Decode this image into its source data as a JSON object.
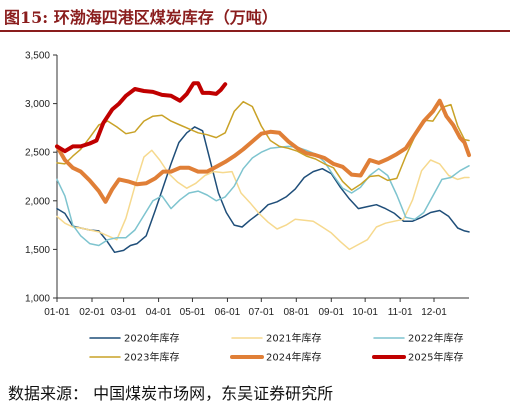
{
  "figure": {
    "label": "图15:",
    "title": "环渤海四港区煤炭库存（万吨）"
  },
  "source": {
    "prefix": "数据来源：",
    "text": "中国煤炭市场网，东吴证券研究所"
  },
  "chart_data": {
    "type": "line",
    "title": "",
    "xlabel": "",
    "ylabel": "",
    "ylim": [
      1000,
      3500
    ],
    "yticks": [
      "1,000",
      "1,500",
      "2,000",
      "2,500",
      "3,000",
      "3,500"
    ],
    "xticks": [
      "01-01",
      "02-01",
      "03-01",
      "04-01",
      "05-01",
      "06-01",
      "07-01",
      "08-01",
      "09-01",
      "10-01",
      "11-01",
      "12-01"
    ],
    "x_unit": "day_of_year",
    "grid": false,
    "legend": "bottom",
    "series": [
      {
        "name": "2020年库存",
        "color": "#1f4e79",
        "width": 1.5,
        "points": [
          [
            1,
            1920
          ],
          [
            8,
            1870
          ],
          [
            15,
            1740
          ],
          [
            22,
            1720
          ],
          [
            30,
            1700
          ],
          [
            38,
            1690
          ],
          [
            45,
            1590
          ],
          [
            52,
            1470
          ],
          [
            60,
            1490
          ],
          [
            66,
            1540
          ],
          [
            72,
            1560
          ],
          [
            80,
            1640
          ],
          [
            88,
            1900
          ],
          [
            95,
            2140
          ],
          [
            102,
            2380
          ],
          [
            109,
            2600
          ],
          [
            116,
            2700
          ],
          [
            123,
            2760
          ],
          [
            130,
            2720
          ],
          [
            137,
            2400
          ],
          [
            144,
            2080
          ],
          [
            151,
            1880
          ],
          [
            158,
            1750
          ],
          [
            165,
            1730
          ],
          [
            172,
            1800
          ],
          [
            180,
            1870
          ],
          [
            188,
            1960
          ],
          [
            196,
            1990
          ],
          [
            204,
            2040
          ],
          [
            212,
            2120
          ],
          [
            220,
            2240
          ],
          [
            228,
            2300
          ],
          [
            236,
            2330
          ],
          [
            244,
            2280
          ],
          [
            252,
            2140
          ],
          [
            260,
            2020
          ],
          [
            268,
            1920
          ],
          [
            276,
            1940
          ],
          [
            284,
            1960
          ],
          [
            292,
            1920
          ],
          [
            300,
            1870
          ],
          [
            308,
            1790
          ],
          [
            316,
            1790
          ],
          [
            324,
            1830
          ],
          [
            332,
            1880
          ],
          [
            340,
            1900
          ],
          [
            348,
            1840
          ],
          [
            356,
            1720
          ],
          [
            362,
            1690
          ],
          [
            366,
            1680
          ]
        ]
      },
      {
        "name": "2021年库存",
        "color": "#f6d98e",
        "width": 1.5,
        "points": [
          [
            1,
            1840
          ],
          [
            8,
            1770
          ],
          [
            15,
            1730
          ],
          [
            22,
            1720
          ],
          [
            30,
            1700
          ],
          [
            38,
            1680
          ],
          [
            46,
            1640
          ],
          [
            54,
            1600
          ],
          [
            62,
            1820
          ],
          [
            70,
            2150
          ],
          [
            78,
            2450
          ],
          [
            85,
            2520
          ],
          [
            92,
            2420
          ],
          [
            100,
            2280
          ],
          [
            108,
            2190
          ],
          [
            116,
            2130
          ],
          [
            124,
            2180
          ],
          [
            132,
            2260
          ],
          [
            140,
            2300
          ],
          [
            148,
            2290
          ],
          [
            156,
            2300
          ],
          [
            164,
            2080
          ],
          [
            172,
            1980
          ],
          [
            180,
            1870
          ],
          [
            188,
            1780
          ],
          [
            196,
            1710
          ],
          [
            204,
            1750
          ],
          [
            212,
            1810
          ],
          [
            220,
            1800
          ],
          [
            228,
            1790
          ],
          [
            236,
            1730
          ],
          [
            244,
            1670
          ],
          [
            252,
            1580
          ],
          [
            260,
            1500
          ],
          [
            268,
            1550
          ],
          [
            276,
            1600
          ],
          [
            284,
            1730
          ],
          [
            292,
            1770
          ],
          [
            300,
            1790
          ],
          [
            308,
            1810
          ],
          [
            316,
            2010
          ],
          [
            324,
            2310
          ],
          [
            332,
            2420
          ],
          [
            340,
            2380
          ],
          [
            348,
            2260
          ],
          [
            356,
            2220
          ],
          [
            362,
            2240
          ],
          [
            366,
            2240
          ]
        ]
      },
      {
        "name": "2022年库存",
        "color": "#7ec4cf",
        "width": 1.5,
        "points": [
          [
            1,
            2220
          ],
          [
            8,
            2050
          ],
          [
            15,
            1750
          ],
          [
            22,
            1640
          ],
          [
            30,
            1560
          ],
          [
            38,
            1540
          ],
          [
            46,
            1600
          ],
          [
            54,
            1620
          ],
          [
            62,
            1620
          ],
          [
            70,
            1700
          ],
          [
            78,
            1850
          ],
          [
            86,
            2000
          ],
          [
            94,
            2050
          ],
          [
            102,
            1920
          ],
          [
            110,
            2010
          ],
          [
            118,
            2080
          ],
          [
            126,
            2100
          ],
          [
            134,
            2060
          ],
          [
            142,
            2000
          ],
          [
            150,
            2040
          ],
          [
            158,
            2150
          ],
          [
            166,
            2330
          ],
          [
            174,
            2440
          ],
          [
            182,
            2500
          ],
          [
            190,
            2540
          ],
          [
            198,
            2550
          ],
          [
            206,
            2560
          ],
          [
            214,
            2550
          ],
          [
            222,
            2520
          ],
          [
            230,
            2480
          ],
          [
            238,
            2400
          ],
          [
            246,
            2260
          ],
          [
            254,
            2130
          ],
          [
            262,
            2080
          ],
          [
            270,
            2140
          ],
          [
            278,
            2260
          ],
          [
            286,
            2330
          ],
          [
            294,
            2260
          ],
          [
            302,
            2060
          ],
          [
            310,
            1830
          ],
          [
            318,
            1810
          ],
          [
            326,
            1880
          ],
          [
            334,
            2050
          ],
          [
            342,
            2220
          ],
          [
            350,
            2240
          ],
          [
            358,
            2310
          ],
          [
            366,
            2360
          ]
        ]
      },
      {
        "name": "2023年库存",
        "color": "#c9a227",
        "width": 1.5,
        "points": [
          [
            1,
            2390
          ],
          [
            8,
            2380
          ],
          [
            15,
            2460
          ],
          [
            22,
            2530
          ],
          [
            30,
            2650
          ],
          [
            38,
            2780
          ],
          [
            46,
            2820
          ],
          [
            54,
            2760
          ],
          [
            62,
            2690
          ],
          [
            70,
            2710
          ],
          [
            78,
            2820
          ],
          [
            86,
            2870
          ],
          [
            94,
            2880
          ],
          [
            102,
            2820
          ],
          [
            110,
            2780
          ],
          [
            118,
            2740
          ],
          [
            126,
            2700
          ],
          [
            134,
            2680
          ],
          [
            142,
            2650
          ],
          [
            150,
            2700
          ],
          [
            158,
            2920
          ],
          [
            166,
            3020
          ],
          [
            174,
            2970
          ],
          [
            182,
            2770
          ],
          [
            190,
            2620
          ],
          [
            198,
            2560
          ],
          [
            206,
            2540
          ],
          [
            214,
            2510
          ],
          [
            222,
            2460
          ],
          [
            230,
            2430
          ],
          [
            238,
            2380
          ],
          [
            246,
            2340
          ],
          [
            254,
            2200
          ],
          [
            262,
            2110
          ],
          [
            270,
            2170
          ],
          [
            278,
            2250
          ],
          [
            286,
            2260
          ],
          [
            294,
            2210
          ],
          [
            302,
            2230
          ],
          [
            310,
            2460
          ],
          [
            318,
            2660
          ],
          [
            326,
            2830
          ],
          [
            334,
            2820
          ],
          [
            342,
            2960
          ],
          [
            350,
            2990
          ],
          [
            356,
            2770
          ],
          [
            362,
            2630
          ],
          [
            366,
            2620
          ]
        ]
      },
      {
        "name": "2024年库存",
        "color": "#e07f37",
        "width": 4,
        "points": [
          [
            1,
            2560
          ],
          [
            8,
            2420
          ],
          [
            15,
            2340
          ],
          [
            22,
            2300
          ],
          [
            30,
            2210
          ],
          [
            38,
            2100
          ],
          [
            44,
            1990
          ],
          [
            50,
            2120
          ],
          [
            56,
            2220
          ],
          [
            64,
            2200
          ],
          [
            72,
            2170
          ],
          [
            80,
            2180
          ],
          [
            88,
            2230
          ],
          [
            95,
            2300
          ],
          [
            102,
            2300
          ],
          [
            110,
            2340
          ],
          [
            118,
            2340
          ],
          [
            126,
            2300
          ],
          [
            134,
            2300
          ],
          [
            142,
            2350
          ],
          [
            150,
            2400
          ],
          [
            158,
            2460
          ],
          [
            166,
            2530
          ],
          [
            174,
            2610
          ],
          [
            182,
            2690
          ],
          [
            190,
            2710
          ],
          [
            198,
            2700
          ],
          [
            206,
            2610
          ],
          [
            214,
            2540
          ],
          [
            222,
            2490
          ],
          [
            230,
            2470
          ],
          [
            238,
            2440
          ],
          [
            246,
            2380
          ],
          [
            254,
            2350
          ],
          [
            262,
            2270
          ],
          [
            270,
            2260
          ],
          [
            278,
            2420
          ],
          [
            286,
            2390
          ],
          [
            294,
            2430
          ],
          [
            302,
            2480
          ],
          [
            310,
            2540
          ],
          [
            318,
            2680
          ],
          [
            326,
            2820
          ],
          [
            334,
            2920
          ],
          [
            340,
            3030
          ],
          [
            346,
            2870
          ],
          [
            352,
            2780
          ],
          [
            358,
            2650
          ],
          [
            362,
            2600
          ],
          [
            366,
            2470
          ]
        ]
      },
      {
        "name": "2025年库存",
        "color": "#c00000",
        "width": 4,
        "points": [
          [
            1,
            2560
          ],
          [
            8,
            2510
          ],
          [
            15,
            2560
          ],
          [
            22,
            2560
          ],
          [
            30,
            2590
          ],
          [
            36,
            2620
          ],
          [
            42,
            2800
          ],
          [
            50,
            2940
          ],
          [
            56,
            3000
          ],
          [
            62,
            3080
          ],
          [
            70,
            3150
          ],
          [
            78,
            3130
          ],
          [
            86,
            3120
          ],
          [
            94,
            3090
          ],
          [
            102,
            3080
          ],
          [
            110,
            3030
          ],
          [
            116,
            3100
          ],
          [
            122,
            3210
          ],
          [
            126,
            3210
          ],
          [
            130,
            3110
          ],
          [
            136,
            3110
          ],
          [
            142,
            3100
          ],
          [
            146,
            3140
          ],
          [
            150,
            3200
          ]
        ]
      }
    ]
  }
}
